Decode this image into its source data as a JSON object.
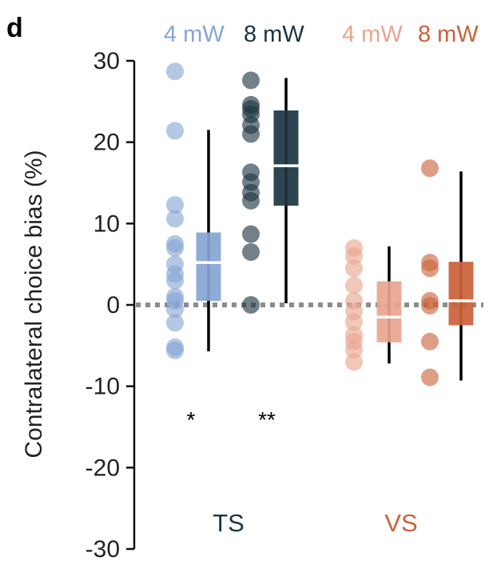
{
  "chart_data": {
    "type": "box",
    "panel_label": "d",
    "ylabel": "Contralateral choice bias (%)",
    "ylim": [
      -30,
      30
    ],
    "yticks": [
      30,
      20,
      10,
      0,
      -10,
      -20,
      -30
    ],
    "reference_line": 0,
    "groups": [
      {
        "label": "TS",
        "color": "#1c3441"
      },
      {
        "label": "VS",
        "color": "#c9623a"
      }
    ],
    "series": [
      {
        "name": "4 mW",
        "group": "TS",
        "color": "#86a5d4",
        "points": [
          28.7,
          21.4,
          12.3,
          10.6,
          7.5,
          7.0,
          5.0,
          3.8,
          3.0,
          1.0,
          0.5,
          -0.5,
          -2.2,
          -5.2,
          -5.6
        ],
        "box": {
          "q1": 0.5,
          "median": 5.2,
          "q3": 8.9,
          "whisker_low": -5.7,
          "whisker_high": 21.5
        },
        "significance": "*"
      },
      {
        "name": "8 mW",
        "group": "TS",
        "color": "#1c3441",
        "points": [
          27.6,
          24.6,
          24.1,
          23.4,
          22.1,
          21.0,
          16.3,
          15.1,
          13.8,
          12.8,
          8.7,
          6.5,
          0.0
        ],
        "box": {
          "q1": 12.2,
          "median": 17.1,
          "q3": 23.9,
          "whisker_low": 0.2,
          "whisker_high": 27.9
        },
        "significance": "**"
      },
      {
        "name": "4 mW",
        "group": "VS",
        "color": "#e8a590",
        "points": [
          7.0,
          6.0,
          4.5,
          2.4,
          0.5,
          -0.8,
          -2.1,
          -3.7,
          -4.5,
          -5.5,
          -7.0
        ],
        "box": {
          "q1": -4.6,
          "median": -1.5,
          "q3": 2.9,
          "whisker_low": -7.2,
          "whisker_high": 7.2
        },
        "significance": ""
      },
      {
        "name": "8 mW",
        "group": "VS",
        "color": "#c9623a",
        "points": [
          16.8,
          5.2,
          4.5,
          0.5,
          -0.1,
          -4.5,
          -8.9
        ],
        "box": {
          "q1": -2.5,
          "median": 0.5,
          "q3": 5.3,
          "whisker_low": -9.3,
          "whisker_high": 16.4
        },
        "significance": ""
      }
    ]
  }
}
